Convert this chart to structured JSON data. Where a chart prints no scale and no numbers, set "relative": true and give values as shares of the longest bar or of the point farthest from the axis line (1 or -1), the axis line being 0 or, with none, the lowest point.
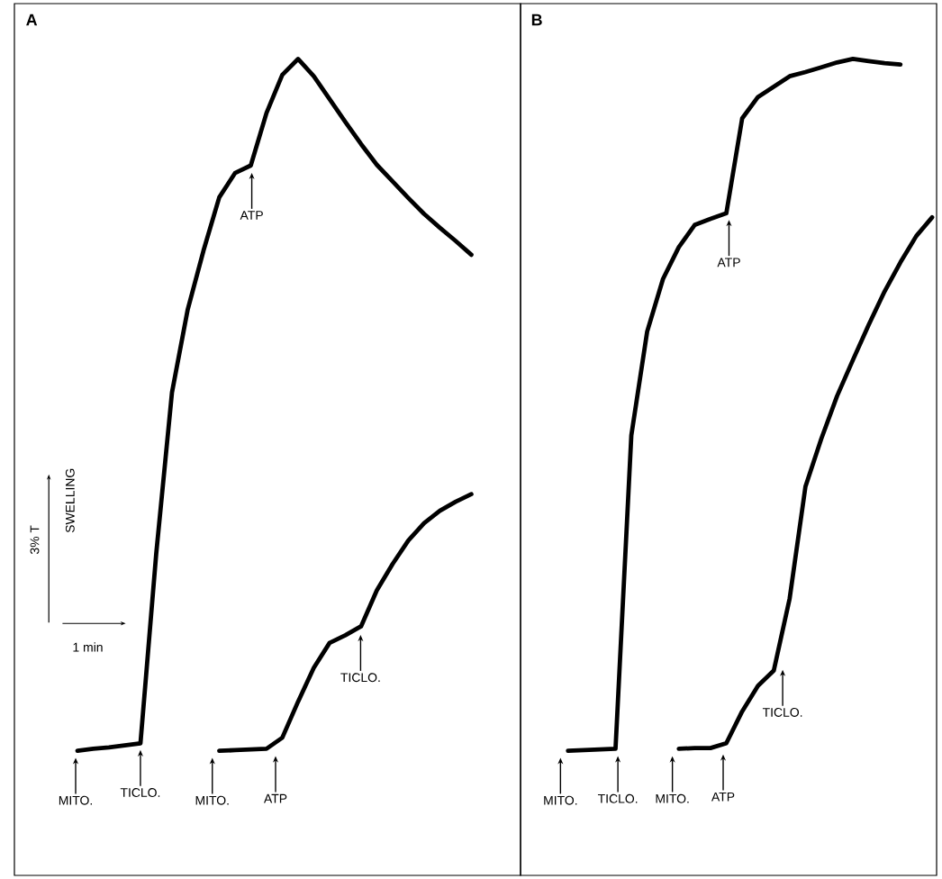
{
  "chart_data": [
    {
      "type": "line",
      "title": "A",
      "relative": true,
      "marker": "none",
      "line_style": "solid",
      "categories": [
        null,
        null,
        null,
        null,
        null,
        null,
        null,
        null,
        null,
        null,
        null,
        null,
        null,
        null,
        null,
        null,
        null,
        null,
        null,
        null,
        null,
        null,
        null,
        null,
        null,
        null,
        null,
        null,
        null,
        null
      ],
      "series": [
        {
          "color": "#000000",
          "values": [
            null,
            null,
            null,
            null,
            0.0,
            0.003,
            0.005,
            0.008,
            0.011,
            0.285,
            0.518,
            0.638,
            0.723,
            0.8,
            0.835,
            0.846,
            0.922,
            0.977,
            1.0,
            0.975,
            0.942,
            0.909,
            0.877,
            0.847,
            0.823,
            0.799,
            0.776,
            0.756,
            0.737,
            0.717
          ]
        },
        {
          "color": "#000000",
          "values": [
            null,
            null,
            null,
            null,
            null,
            null,
            null,
            null,
            null,
            null,
            null,
            null,
            null,
            0.0,
            0.001,
            0.002,
            0.003,
            0.019,
            0.071,
            0.12,
            0.156,
            0.167,
            0.18,
            0.232,
            0.27,
            0.304,
            0.329,
            0.347,
            0.36,
            0.371
          ]
        }
      ],
      "annotations": [
        "MITO.",
        "TICLO.",
        "ATP",
        "MITO.",
        "ATP",
        "TICLO.",
        "3% T",
        "SWELLING",
        "1 min"
      ]
    },
    {
      "type": "line",
      "title": "B",
      "relative": true,
      "marker": "none",
      "line_style": "solid",
      "categories": [
        null,
        null,
        null,
        null,
        null,
        null,
        null,
        null,
        null,
        null,
        null,
        null,
        null,
        null,
        null,
        null,
        null,
        null,
        null,
        null,
        null,
        null,
        null,
        null,
        null,
        null,
        null
      ],
      "series": [
        {
          "color": "#000000",
          "values": [
            null,
            null,
            null,
            0.0,
            0.001,
            0.002,
            0.003,
            0.456,
            0.606,
            0.682,
            0.728,
            0.76,
            0.769,
            0.777,
            0.914,
            0.945,
            0.96,
            0.975,
            0.981,
            0.988,
            0.995,
            1.0,
            0.997,
            0.994,
            0.992,
            null,
            null
          ]
        },
        {
          "color": "#000000",
          "values": [
            null,
            null,
            null,
            null,
            null,
            null,
            null,
            null,
            null,
            null,
            0.003,
            0.004,
            0.004,
            0.011,
            0.057,
            0.094,
            0.116,
            0.22,
            0.382,
            0.451,
            0.513,
            0.565,
            0.616,
            0.664,
            0.706,
            0.744,
            0.771
          ]
        }
      ],
      "annotations": [
        "MITO.",
        "TICLO.",
        "ATP",
        "MITO.",
        "ATP",
        "TICLO."
      ]
    }
  ]
}
